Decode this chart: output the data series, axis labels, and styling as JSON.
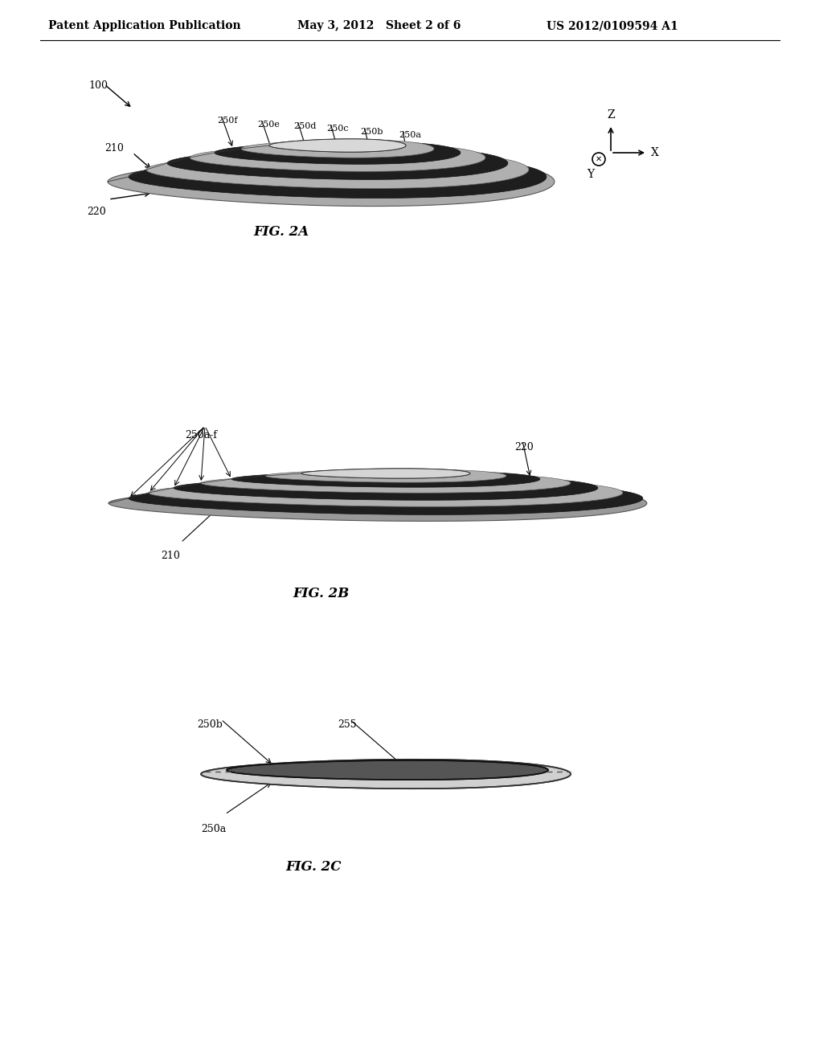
{
  "header_left": "Patent Application Publication",
  "header_mid": "May 3, 2012   Sheet 2 of 6",
  "header_right": "US 2012/0109594 A1",
  "fig2a_caption": "FIG. 2A",
  "fig2b_caption": "FIG. 2B",
  "fig2c_caption": "FIG. 2C",
  "label_100": "100",
  "label_210_2a": "210",
  "label_220_2a": "220",
  "label_250f": "250f",
  "label_250e": "250e",
  "label_250d": "250d",
  "label_250c": "250c",
  "label_250b_2a": "250b",
  "label_250a_2a": "250a",
  "label_Z": "Z",
  "label_X": "X",
  "label_Y": "Y",
  "label_250af": "250a-f",
  "label_220_2b": "220",
  "label_210_2b": "210",
  "label_250b_2c": "250b",
  "label_255": "255",
  "label_250a_2c": "250a",
  "bg_color": "#ffffff",
  "line_color": "#000000",
  "dark_stripe_color": "#1a1a1a",
  "light_stripe_color": "#d0d0d0",
  "body_edge_color": "#333333"
}
